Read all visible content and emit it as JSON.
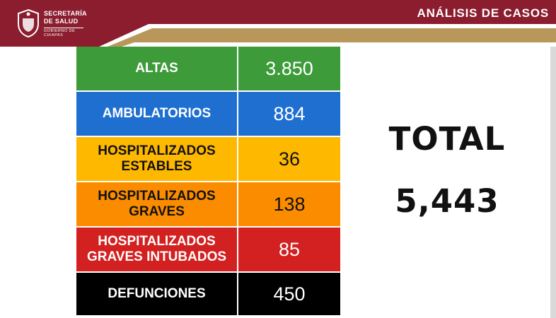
{
  "header": {
    "org_line1": "SECRETARÍA",
    "org_line2": "DE SALUD",
    "org_line3": "GOBIERNO DE CHIAPAS",
    "title": "ANÁLISIS DE CASOS"
  },
  "colors": {
    "header_maroon": "#8b1d2f",
    "header_gold": "#b9975b",
    "altas": "#3d9b3a",
    "ambulatorios": "#1f6fd1",
    "estables": "#ffb800",
    "graves": "#fb8c00",
    "intubados": "#d32020",
    "defunciones": "#000000"
  },
  "rows": [
    {
      "label": "ALTAS",
      "value": "3.850"
    },
    {
      "label": "AMBULATORIOS",
      "value": "884"
    },
    {
      "label": "HOSPITALIZADOS ESTABLES",
      "label_line1": "HOSPITALIZADOS",
      "label_line2": "ESTABLES",
      "value": "36"
    },
    {
      "label": "HOSPITALIZADOS GRAVES",
      "label_line1": "HOSPITALIZADOS",
      "label_line2": "GRAVES",
      "value": "138"
    },
    {
      "label": "HOSPITALIZADOS GRAVES INTUBADOS",
      "label_line1": "HOSPITALIZADOS",
      "label_line2": "GRAVES INTUBADOS",
      "value": "85"
    },
    {
      "label": "DEFUNCIONES",
      "value": "450"
    }
  ],
  "total": {
    "label": "TOTAL",
    "value": "5,443"
  }
}
